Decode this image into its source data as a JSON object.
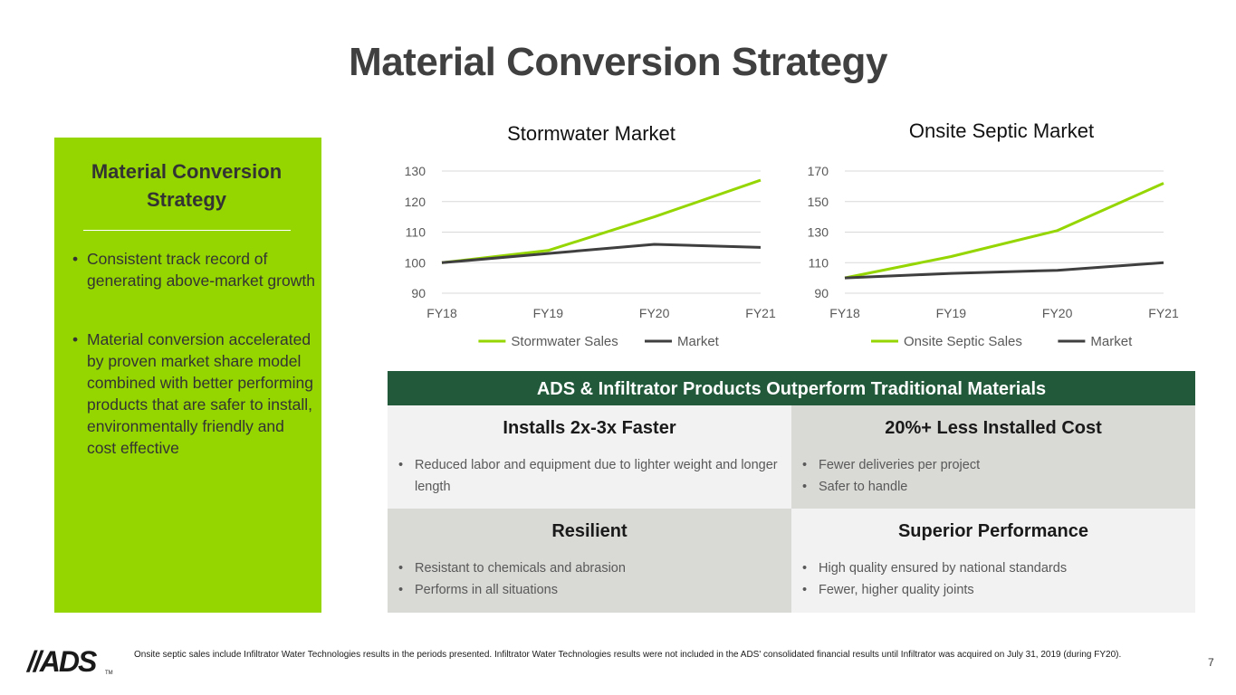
{
  "title": "Material Conversion Strategy",
  "sidebar": {
    "title_line1": "Material Conversion",
    "title_line2": "Strategy",
    "bullets": [
      "Consistent track record of generating above-market growth",
      "Material conversion accelerated by proven market share model combined with better performing products that are safer to install, environmentally friendly and cost effective"
    ]
  },
  "colors": {
    "green": "#95d600",
    "dark_green": "#21593a",
    "gray_line": "#3f3f3f"
  },
  "chart_data": [
    {
      "type": "line",
      "title": "Stormwater Market",
      "x": [
        "FY18",
        "FY19",
        "FY20",
        "FY21"
      ],
      "yticks": [
        90,
        100,
        110,
        120,
        130
      ],
      "ylim": [
        90,
        130
      ],
      "series": [
        {
          "name": "Stormwater Sales",
          "color": "#95d600",
          "values": [
            100,
            104,
            115,
            127
          ]
        },
        {
          "name": "Market",
          "color": "#3f3f3f",
          "values": [
            100,
            103,
            106,
            105
          ]
        }
      ],
      "legend": "bottom"
    },
    {
      "type": "line",
      "title": "Onsite Septic Market",
      "x": [
        "FY18",
        "FY19",
        "FY20",
        "FY21"
      ],
      "yticks": [
        90,
        110,
        130,
        150,
        170
      ],
      "ylim": [
        90,
        170
      ],
      "series": [
        {
          "name": "Onsite Septic Sales",
          "color": "#95d600",
          "values": [
            100,
            114,
            131,
            162
          ]
        },
        {
          "name": "Market",
          "color": "#3f3f3f",
          "values": [
            100,
            103,
            105,
            110
          ]
        }
      ],
      "legend": "bottom"
    }
  ],
  "table": {
    "header": "ADS & Infiltrator Products Outperform Traditional Materials",
    "cells": [
      {
        "title": "Installs 2x-3x Faster",
        "bullets": [
          "Reduced labor and equipment due to lighter weight and longer length"
        ]
      },
      {
        "title": "20%+ Less Installed Cost",
        "bullets": [
          "Fewer deliveries per project",
          "Safer to handle"
        ]
      },
      {
        "title": "Resilient",
        "bullets": [
          "Resistant to chemicals and abrasion",
          "Performs in all situations"
        ]
      },
      {
        "title": "Superior Performance",
        "bullets": [
          "High quality ensured by national standards",
          "Fewer, higher quality joints"
        ]
      }
    ]
  },
  "footer": {
    "logo": "//ADS",
    "logo_tm": "TM",
    "footnote": "Onsite septic sales include Infiltrator Water Technologies results in the periods presented. Infiltrator Water Technologies results were not included in the ADS' consolidated financial results until Infiltrator was acquired on July 31, 2019 (during FY20).",
    "page_number": "7"
  }
}
